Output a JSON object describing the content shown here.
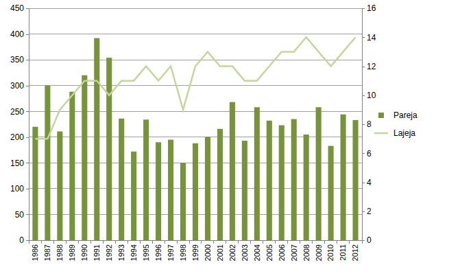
{
  "chart_data": {
    "type": "bar",
    "categories": [
      "1986",
      "1987",
      "1988",
      "1989",
      "1990",
      "1991",
      "1992",
      "1993",
      "1994",
      "1995",
      "1996",
      "1997",
      "1998",
      "1999",
      "2000",
      "2001",
      "2002",
      "2003",
      "2004",
      "2005",
      "2006",
      "2007",
      "2008",
      "2009",
      "2010",
      "2011",
      "2012"
    ],
    "series": [
      {
        "name": "Pareja",
        "type": "bar",
        "color": "#77933c",
        "values": [
          220,
          300,
          211,
          288,
          320,
          392,
          354,
          236,
          172,
          234,
          190,
          195,
          150,
          188,
          200,
          216,
          268,
          193,
          258,
          232,
          223,
          235,
          205,
          258,
          183,
          244,
          233
        ]
      },
      {
        "name": "Lajeja",
        "type": "line",
        "axis": "y2",
        "color": "#c3d69b",
        "values": [
          7,
          7,
          9,
          10,
          11,
          11,
          10,
          11,
          11,
          12,
          11,
          12,
          9,
          12,
          13,
          12,
          12,
          11,
          11,
          12,
          13,
          13,
          14,
          13,
          12,
          13,
          14
        ]
      }
    ],
    "ylim": [
      0,
      450
    ],
    "yticks": [
      0,
      50,
      100,
      150,
      200,
      250,
      300,
      350,
      400,
      450
    ],
    "y2lim": [
      0,
      16
    ],
    "y2ticks": [
      0,
      2,
      4,
      6,
      8,
      10,
      12,
      14,
      16
    ],
    "grid": true,
    "legend": "right"
  }
}
